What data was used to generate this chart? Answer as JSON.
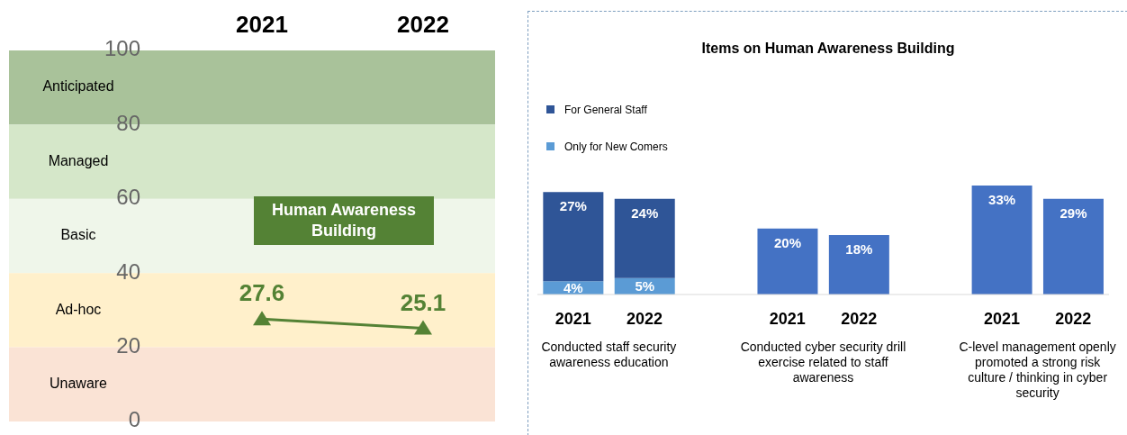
{
  "chart_data": [
    {
      "type": "line",
      "categories": [
        "2021",
        "2022"
      ],
      "series": [
        {
          "color": "#548235",
          "values": [
            27.6,
            25.1
          ]
        }
      ],
      "ylim": [
        0,
        100
      ],
      "yticks": [
        0,
        20,
        40,
        60,
        80,
        100
      ],
      "bands": [
        {
          "axis": "y",
          "from": 80,
          "to": 100,
          "label": "Anticipated",
          "color": "#a9c29a"
        },
        {
          "axis": "y",
          "from": 60,
          "to": 80,
          "label": "Managed",
          "color": "#d5e7c9"
        },
        {
          "axis": "y",
          "from": 40,
          "to": 60,
          "label": "Basic",
          "color": "#eff6ea"
        },
        {
          "axis": "y",
          "from": 20,
          "to": 40,
          "label": "Ad-hoc",
          "color": "#fff0cb"
        },
        {
          "axis": "y",
          "from": 0,
          "to": 20,
          "label": "Unaware",
          "color": "#fae3d5"
        }
      ],
      "annotations": [
        "Human Awareness Building"
      ],
      "data_labels": true,
      "marker": "triangle",
      "grid": false
    },
    {
      "type": "bar",
      "title": "Items on Human Awareness Building",
      "categories": [
        "2021",
        "2022",
        null,
        "2021",
        "2022",
        null,
        "2021",
        "2022"
      ],
      "series": [
        {
          "name": "Only for New Comers",
          "color": "#5b9bd5",
          "values": [
            4,
            5,
            null,
            null,
            null,
            null,
            null,
            null
          ],
          "value_labels": [
            "4%",
            "5%",
            null,
            null,
            null,
            null,
            null,
            null
          ]
        },
        {
          "name": "For General Staff",
          "color": "#2f5597",
          "values": [
            27,
            24,
            null,
            null,
            null,
            null,
            null,
            null
          ],
          "value_labels": [
            "27%",
            "24%",
            null,
            null,
            null,
            null,
            null,
            null
          ]
        },
        {
          "color": "#4472c4",
          "values": [
            null,
            null,
            null,
            20,
            18,
            null,
            33,
            29
          ],
          "value_labels": [
            null,
            null,
            null,
            "20%",
            "18%",
            null,
            "33%",
            "29%"
          ]
        }
      ],
      "stacked": true,
      "legend": "top left",
      "annotations": [
        "Conducted staff security awareness education",
        "Conducted cyber security drill exercise related to staff awareness",
        "C-level management openly promoted a strong risk culture / thinking in cyber security"
      ]
    }
  ]
}
